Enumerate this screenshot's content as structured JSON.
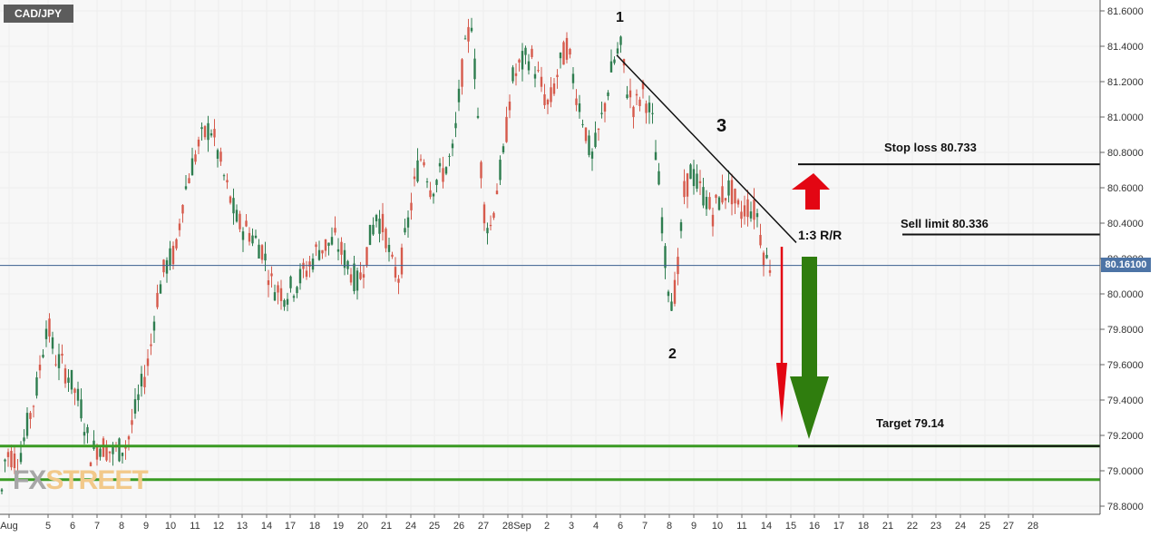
{
  "symbol": "CAD/JPY",
  "logo": {
    "part1": "FX",
    "part2": "STREET"
  },
  "current_price_label": "80.16100",
  "colors": {
    "up": "#2e7d4f",
    "down": "#d65a4c",
    "support": "#3a9b23",
    "arrow_up": "#e30613",
    "arrow_down_green": "#2f7d0e",
    "grid": "#eeeeee",
    "background": "#f7f7f7",
    "price_line": "#3a5f8f"
  },
  "annotations": {
    "p1": "1",
    "p2": "2",
    "p3": "3",
    "rr": "1:3 R/R",
    "stop": "Stop loss 80.733",
    "sell": "Sell limit 80.336",
    "target": "Target 79.14"
  },
  "chart_data": {
    "type": "candlestick",
    "title": "CAD/JPY",
    "ylim": [
      78.7,
      81.65
    ],
    "y_ticks": [
      "78.8000",
      "79.0000",
      "79.2000",
      "79.4000",
      "79.6000",
      "79.8000",
      "80.0000",
      "80.2000",
      "80.4000",
      "80.6000",
      "80.8000",
      "81.0000",
      "81.2000",
      "81.4000",
      "81.6000"
    ],
    "x_ticks": [
      "Aug",
      "5",
      "6",
      "7",
      "8",
      "9",
      "10",
      "11",
      "12",
      "13",
      "14",
      "17",
      "18",
      "19",
      "20",
      "21",
      "24",
      "25",
      "26",
      "27",
      "28",
      "Sep",
      "2",
      "3",
      "4",
      "6",
      "7",
      "8",
      "9",
      "10",
      "11",
      "14",
      "15",
      "16",
      "17",
      "18",
      "21",
      "22",
      "23",
      "24",
      "25",
      "27",
      "28"
    ],
    "anchors": [
      {
        "x": 0,
        "price": 78.72
      },
      {
        "x": 4,
        "price": 79.05
      },
      {
        "x": 10,
        "price": 79.1
      },
      {
        "x": 20,
        "price": 79.05
      },
      {
        "x": 30,
        "price": 79.25
      },
      {
        "x": 40,
        "price": 79.45
      },
      {
        "x": 52,
        "price": 79.85
      },
      {
        "x": 60,
        "price": 79.65
      },
      {
        "x": 75,
        "price": 79.55
      },
      {
        "x": 90,
        "price": 79.35
      },
      {
        "x": 100,
        "price": 79.1
      },
      {
        "x": 110,
        "price": 79.15
      },
      {
        "x": 125,
        "price": 79.1
      },
      {
        "x": 140,
        "price": 79.15
      },
      {
        "x": 150,
        "price": 79.35
      },
      {
        "x": 165,
        "price": 79.65
      },
      {
        "x": 172,
        "price": 79.95
      },
      {
        "x": 182,
        "price": 80.15
      },
      {
        "x": 195,
        "price": 80.25
      },
      {
        "x": 200,
        "price": 80.5
      },
      {
        "x": 210,
        "price": 80.7
      },
      {
        "x": 220,
        "price": 80.85
      },
      {
        "x": 232,
        "price": 80.95
      },
      {
        "x": 240,
        "price": 80.8
      },
      {
        "x": 250,
        "price": 80.6
      },
      {
        "x": 262,
        "price": 80.4
      },
      {
        "x": 275,
        "price": 80.35
      },
      {
        "x": 290,
        "price": 80.25
      },
      {
        "x": 300,
        "price": 80.05
      },
      {
        "x": 315,
        "price": 80.0
      },
      {
        "x": 325,
        "price": 80.05
      },
      {
        "x": 340,
        "price": 80.15
      },
      {
        "x": 350,
        "price": 80.25
      },
      {
        "x": 370,
        "price": 80.3
      },
      {
        "x": 385,
        "price": 80.15
      },
      {
        "x": 395,
        "price": 80.05
      },
      {
        "x": 405,
        "price": 80.25
      },
      {
        "x": 415,
        "price": 80.45
      },
      {
        "x": 425,
        "price": 80.35
      },
      {
        "x": 432,
        "price": 80.15
      },
      {
        "x": 440,
        "price": 80.1
      },
      {
        "x": 450,
        "price": 80.4
      },
      {
        "x": 460,
        "price": 80.7
      },
      {
        "x": 466,
        "price": 80.8
      },
      {
        "x": 475,
        "price": 80.6
      },
      {
        "x": 490,
        "price": 80.7
      },
      {
        "x": 500,
        "price": 80.8
      },
      {
        "x": 508,
        "price": 81.2
      },
      {
        "x": 514,
        "price": 81.4
      },
      {
        "x": 520,
        "price": 81.55
      },
      {
        "x": 527,
        "price": 81.0
      },
      {
        "x": 533,
        "price": 80.5
      },
      {
        "x": 540,
        "price": 80.35
      },
      {
        "x": 548,
        "price": 80.6
      },
      {
        "x": 556,
        "price": 80.8
      },
      {
        "x": 564,
        "price": 81.2
      },
      {
        "x": 575,
        "price": 81.3
      },
      {
        "x": 585,
        "price": 81.35
      },
      {
        "x": 595,
        "price": 81.2
      },
      {
        "x": 605,
        "price": 81.05
      },
      {
        "x": 615,
        "price": 81.25
      },
      {
        "x": 625,
        "price": 81.4
      },
      {
        "x": 635,
        "price": 81.15
      },
      {
        "x": 645,
        "price": 80.95
      },
      {
        "x": 652,
        "price": 80.75
      },
      {
        "x": 660,
        "price": 80.9
      },
      {
        "x": 668,
        "price": 81.1
      },
      {
        "x": 676,
        "price": 81.3
      },
      {
        "x": 684,
        "price": 81.4
      },
      {
        "x": 692,
        "price": 81.15
      },
      {
        "x": 700,
        "price": 81.05
      },
      {
        "x": 710,
        "price": 81.15
      },
      {
        "x": 720,
        "price": 80.95
      },
      {
        "x": 728,
        "price": 80.55
      },
      {
        "x": 735,
        "price": 80.1
      },
      {
        "x": 742,
        "price": 79.95
      },
      {
        "x": 748,
        "price": 80.15
      },
      {
        "x": 754,
        "price": 80.55
      },
      {
        "x": 762,
        "price": 80.7
      },
      {
        "x": 770,
        "price": 80.6
      },
      {
        "x": 778,
        "price": 80.55
      },
      {
        "x": 785,
        "price": 80.45
      },
      {
        "x": 795,
        "price": 80.55
      },
      {
        "x": 805,
        "price": 80.6
      },
      {
        "x": 815,
        "price": 80.45
      },
      {
        "x": 825,
        "price": 80.5
      },
      {
        "x": 835,
        "price": 80.45
      },
      {
        "x": 841,
        "price": 80.25
      },
      {
        "x": 846,
        "price": 80.18
      },
      {
        "x": 852,
        "price": 80.16
      }
    ],
    "support_lines": [
      79.14,
      78.95
    ],
    "current_price": 80.161,
    "trendline": {
      "from": {
        "x": 680,
        "price": 81.35
      },
      "to": {
        "x": 878,
        "price": 80.29
      }
    },
    "levels": {
      "stop_loss": 80.733,
      "sell_limit": 80.336,
      "target": 79.14
    }
  }
}
